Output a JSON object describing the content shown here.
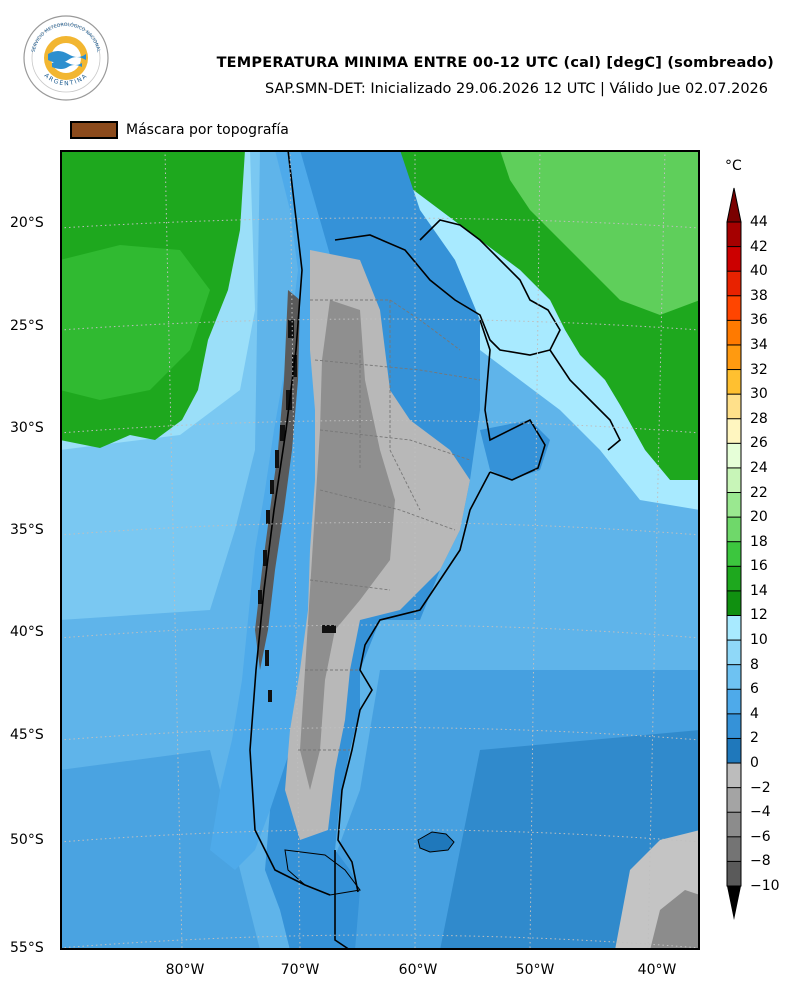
{
  "header": {
    "title": "TEMPERATURA MINIMA ENTRE 00-12 UTC (cal) [degC] (sombreado)",
    "subtitle": "SAP.SMN-DET: Inicializado 29.06.2026 12 UTC | Válido Jue 02.07.2026"
  },
  "logo": {
    "text_top": "SERVICIO METEOROLÓGICO NACIONAL",
    "text_bottom": "ARGENTINA"
  },
  "mask_legend": {
    "label": "Máscara por topografía",
    "color": "#8b4a1c"
  },
  "map": {
    "lat_labels": [
      "20°S",
      "25°S",
      "30°S",
      "35°S",
      "40°S",
      "45°S",
      "50°S",
      "55°S"
    ],
    "lon_labels": [
      "80°W",
      "70°W",
      "60°W",
      "50°W",
      "40°W"
    ]
  },
  "colorbar": {
    "unit": "°C",
    "ticks": [
      "44",
      "42",
      "40",
      "38",
      "36",
      "34",
      "32",
      "30",
      "28",
      "26",
      "24",
      "22",
      "20",
      "18",
      "16",
      "14",
      "12",
      "10",
      "8",
      "6",
      "4",
      "2",
      "0",
      "−2",
      "−4",
      "−6",
      "−8",
      "−10"
    ],
    "colors": [
      "#7a0000",
      "#a50000",
      "#cc0000",
      "#e82200",
      "#ff4500",
      "#ff7a00",
      "#ff9a10",
      "#ffc030",
      "#ffe08a",
      "#fff6c0",
      "#e6ffd8",
      "#c8f5b8",
      "#9ae890",
      "#6fd86a",
      "#3cc63e",
      "#1ea81e",
      "#109010",
      "#a8eaff",
      "#8fd8f8",
      "#6ec2f2",
      "#4eaaea",
      "#3592d8",
      "#1f78bb",
      "#bcbcbc",
      "#a4a4a4",
      "#8c8c8c",
      "#747474",
      "#5a5a5a"
    ]
  }
}
